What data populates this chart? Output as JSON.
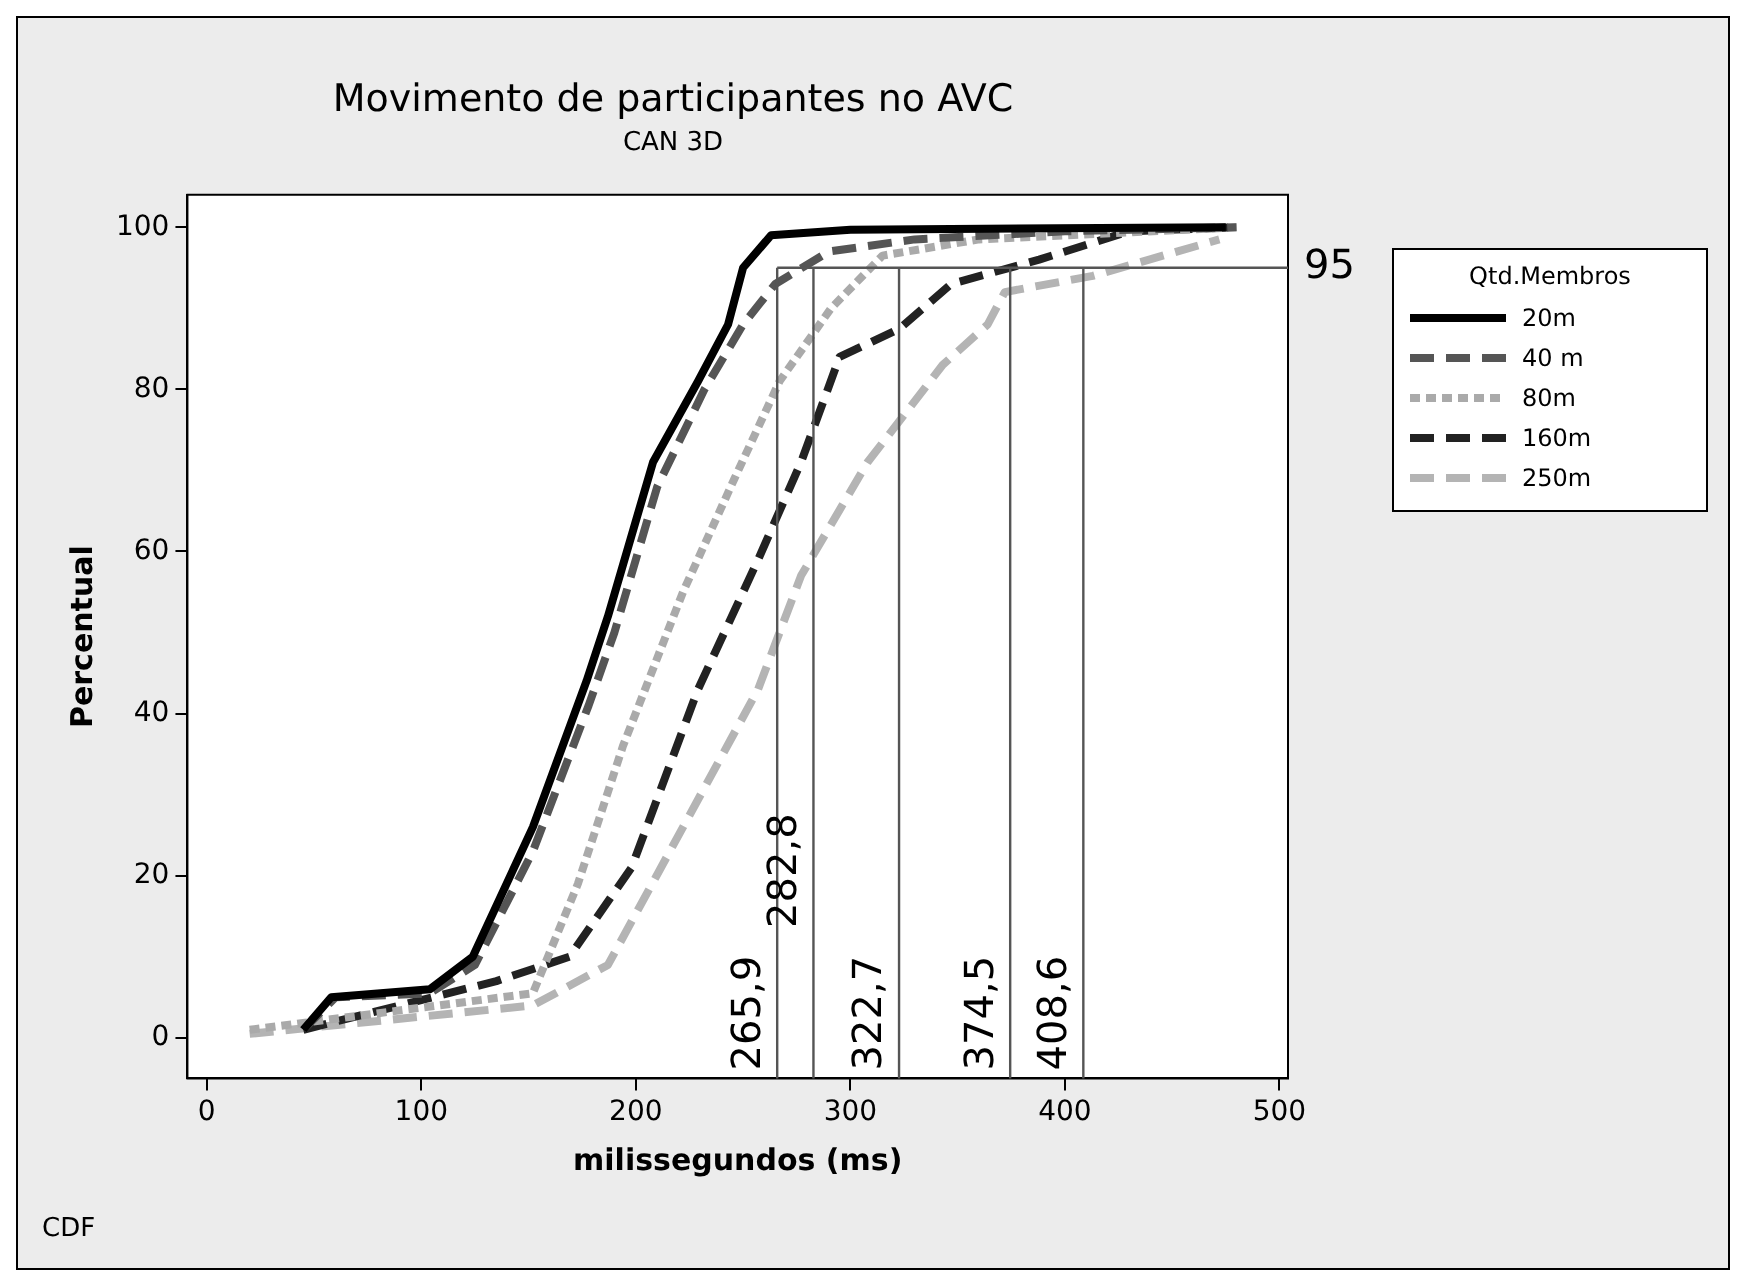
{
  "chart_data": {
    "type": "line",
    "title": "Movimento de participantes no AVC",
    "subtitle": "CAN 3D",
    "xlabel": "milissegundos (ms)",
    "ylabel": "Percentual",
    "legend_title": "Qtd.Membros",
    "legend": "right",
    "marker": "none",
    "xlim": [
      -9,
      504
    ],
    "xticks": [
      0,
      100,
      200,
      300,
      400,
      500
    ],
    "ylim": [
      -5,
      104
    ],
    "yticks": [
      0,
      20,
      40,
      60,
      80,
      100
    ],
    "series": [
      {
        "name": "20m",
        "color": "#000000",
        "line_style": "solid",
        "x": [
          45,
          58,
          104,
          124,
          152,
          177,
          187,
          208,
          229,
          243,
          250,
          263,
          300,
          475
        ],
        "values": [
          1,
          5,
          6,
          10,
          26,
          44,
          52,
          71,
          81,
          88,
          95,
          99,
          99.7,
          100
        ]
      },
      {
        "name": "40 m",
        "color": "#555555",
        "line_style": "dashed",
        "x": [
          45,
          60,
          104,
          125,
          152,
          178,
          190,
          210,
          232,
          250,
          265,
          290,
          330,
          400,
          480
        ],
        "values": [
          1,
          5,
          5.5,
          9,
          23,
          41,
          50,
          68,
          80,
          88,
          93,
          97,
          98.5,
          99.5,
          100
        ]
      },
      {
        "name": "80m",
        "color": "#aaaaaa",
        "line_style": "dotted",
        "x": [
          20,
          152,
          173,
          194,
          222,
          246,
          267,
          291,
          315,
          360,
          480
        ],
        "values": [
          1,
          5.5,
          19,
          36,
          55,
          69,
          81,
          90,
          96.5,
          98.5,
          100
        ]
      },
      {
        "name": "160m",
        "color": "#222222",
        "line_style": "dashed",
        "x": [
          45,
          135,
          169,
          198,
          229,
          257,
          277,
          295,
          323,
          347,
          388,
          430,
          480
        ],
        "values": [
          1,
          7,
          10,
          21,
          43,
          59,
          71,
          84,
          87.5,
          93,
          96,
          99.5,
          100
        ]
      },
      {
        "name": "250m",
        "color": "#b4b4b4",
        "line_style": "dashed",
        "x": [
          20,
          152,
          187,
          222,
          257,
          277,
          308,
          343,
          364,
          372,
          413,
          472
        ],
        "values": [
          0.5,
          4,
          9,
          26,
          43,
          57,
          71,
          83,
          88,
          92,
          94,
          98.5
        ]
      }
    ],
    "ref_lines": [
      {
        "axis": "x",
        "value": 265.9,
        "label": "265,9"
      },
      {
        "axis": "x",
        "value": 282.8,
        "label": "282,8"
      },
      {
        "axis": "x",
        "value": 322.7,
        "label": "322,7"
      },
      {
        "axis": "x",
        "value": 374.5,
        "label": "374,5"
      },
      {
        "axis": "x",
        "value": 408.6,
        "label": "408,6"
      },
      {
        "axis": "y",
        "value": 95,
        "label": "95"
      }
    ],
    "annotations": [
      "CDF"
    ]
  }
}
